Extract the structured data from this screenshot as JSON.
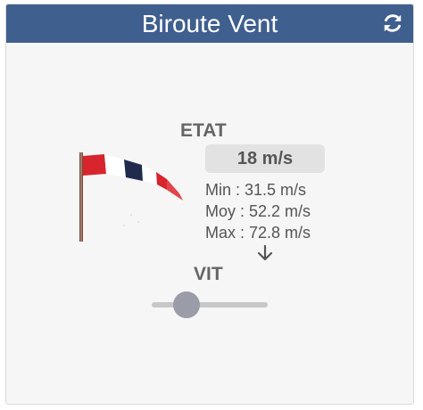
{
  "widget": {
    "title": "Biroute Vent",
    "refresh_icon": "refresh-icon",
    "windsock_icon": "windsock-icon"
  },
  "etat": {
    "label": "ETAT",
    "value": "18 m/s",
    "min": "Min : 31.5 m/s",
    "moy": "Moy : 52.2 m/s",
    "max": "Max : 72.8 m/s",
    "trend_icon": "arrow-down-icon"
  },
  "vit": {
    "label": "VIT",
    "slider_level": 0.3
  },
  "colors": {
    "header": "#3f5f8e",
    "sock_red": "#d8242c",
    "sock_navy": "#1f2a4d",
    "slider_thumb": "#9a9ca8"
  }
}
